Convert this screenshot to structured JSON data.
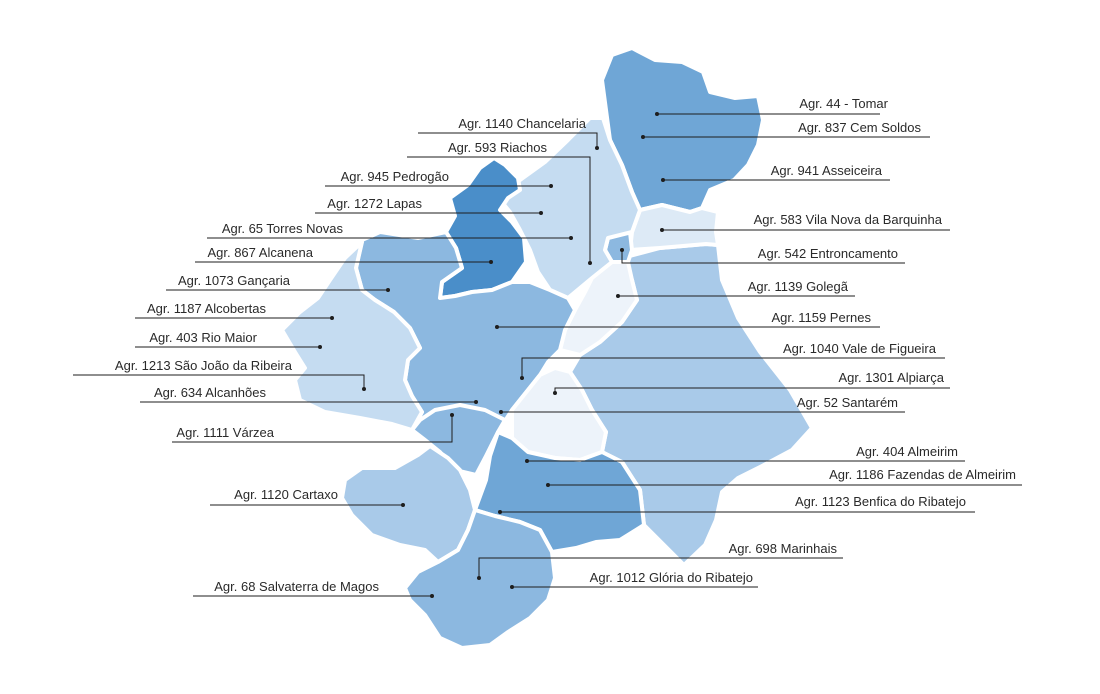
{
  "colors": {
    "c1": "#4a8ec9",
    "c2": "#6fa6d6",
    "c3": "#8cb8e0",
    "c4": "#a9cae9",
    "c5": "#c5dcf1",
    "c6": "#ddeaf6",
    "c7": "#edf3fa",
    "line": "#1e1e1e"
  },
  "labels": [
    {
      "id": "tomar",
      "text": "Agr. 44 - Tomar"
    },
    {
      "id": "cem-soldos",
      "text": "Agr. 837 Cem Soldos"
    },
    {
      "id": "asseiceira",
      "text": "Agr. 941 Asseiceira"
    },
    {
      "id": "vila-nova-barquinha",
      "text": "Agr. 583 Vila Nova da Barquinha"
    },
    {
      "id": "entroncamento",
      "text": "Agr. 542 Entroncamento"
    },
    {
      "id": "golega",
      "text": "Agr. 1139 Golegã"
    },
    {
      "id": "pernes",
      "text": "Agr. 1159 Pernes"
    },
    {
      "id": "vale-figueira",
      "text": "Agr. 1040 Vale de Figueira"
    },
    {
      "id": "alpiarca",
      "text": "Agr. 1301 Alpiarça"
    },
    {
      "id": "santarem",
      "text": "Agr. 52 Santarém"
    },
    {
      "id": "almeirim",
      "text": "Agr. 404 Almeirim"
    },
    {
      "id": "fazendas-almeirim",
      "text": "Agr. 1186 Fazendas de Almeirim"
    },
    {
      "id": "benfica-ribatejo",
      "text": "Agr. 1123 Benfica do Ribatejo"
    },
    {
      "id": "marinhais",
      "text": "Agr. 698 Marinhais"
    },
    {
      "id": "gloria-ribatejo",
      "text": "Agr. 1012 Glória do Ribatejo"
    },
    {
      "id": "chancelaria",
      "text": "Agr. 1140 Chancelaria"
    },
    {
      "id": "riachos",
      "text": "Agr. 593 Riachos"
    },
    {
      "id": "pedrogao",
      "text": "Agr. 945 Pedrogão"
    },
    {
      "id": "lapas",
      "text": "Agr. 1272 Lapas"
    },
    {
      "id": "torres-novas",
      "text": "Agr. 65 Torres Novas"
    },
    {
      "id": "alcanena",
      "text": "Agr. 867 Alcanena"
    },
    {
      "id": "gancaria",
      "text": "Agr. 1073 Gançaria"
    },
    {
      "id": "alcobertas",
      "text": "Agr. 1187 Alcobertas"
    },
    {
      "id": "rio-maior",
      "text": "Agr. 403 Rio Maior"
    },
    {
      "id": "sao-joao-ribeira",
      "text": "Agr. 1213 São João da Ribeira"
    },
    {
      "id": "alcanhoes",
      "text": "Agr. 634 Alcanhões"
    },
    {
      "id": "varzea",
      "text": "Agr. 1111 Várzea"
    },
    {
      "id": "cartaxo",
      "text": "Agr. 1120 Cartaxo"
    },
    {
      "id": "salvaterra-magos",
      "text": "Agr. 68 Salvaterra de Magos"
    }
  ]
}
